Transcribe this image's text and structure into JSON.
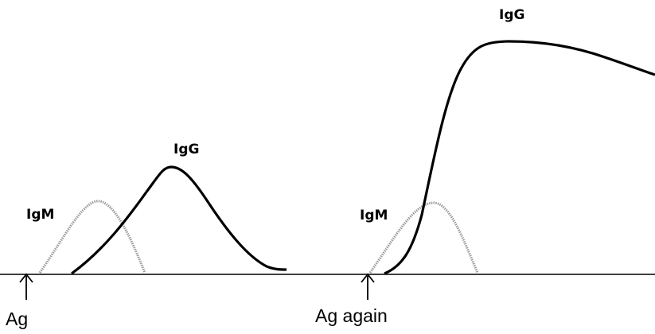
{
  "labels": {
    "igm_primary": "IgM",
    "igg_primary": "IgG",
    "igm_secondary": "IgM",
    "igg_secondary": "IgG"
  },
  "events": {
    "first": "Ag",
    "second": "Ag again"
  },
  "colors": {
    "igm": "#9a9a9a",
    "igg": "#000000",
    "axis": "#000000"
  }
}
